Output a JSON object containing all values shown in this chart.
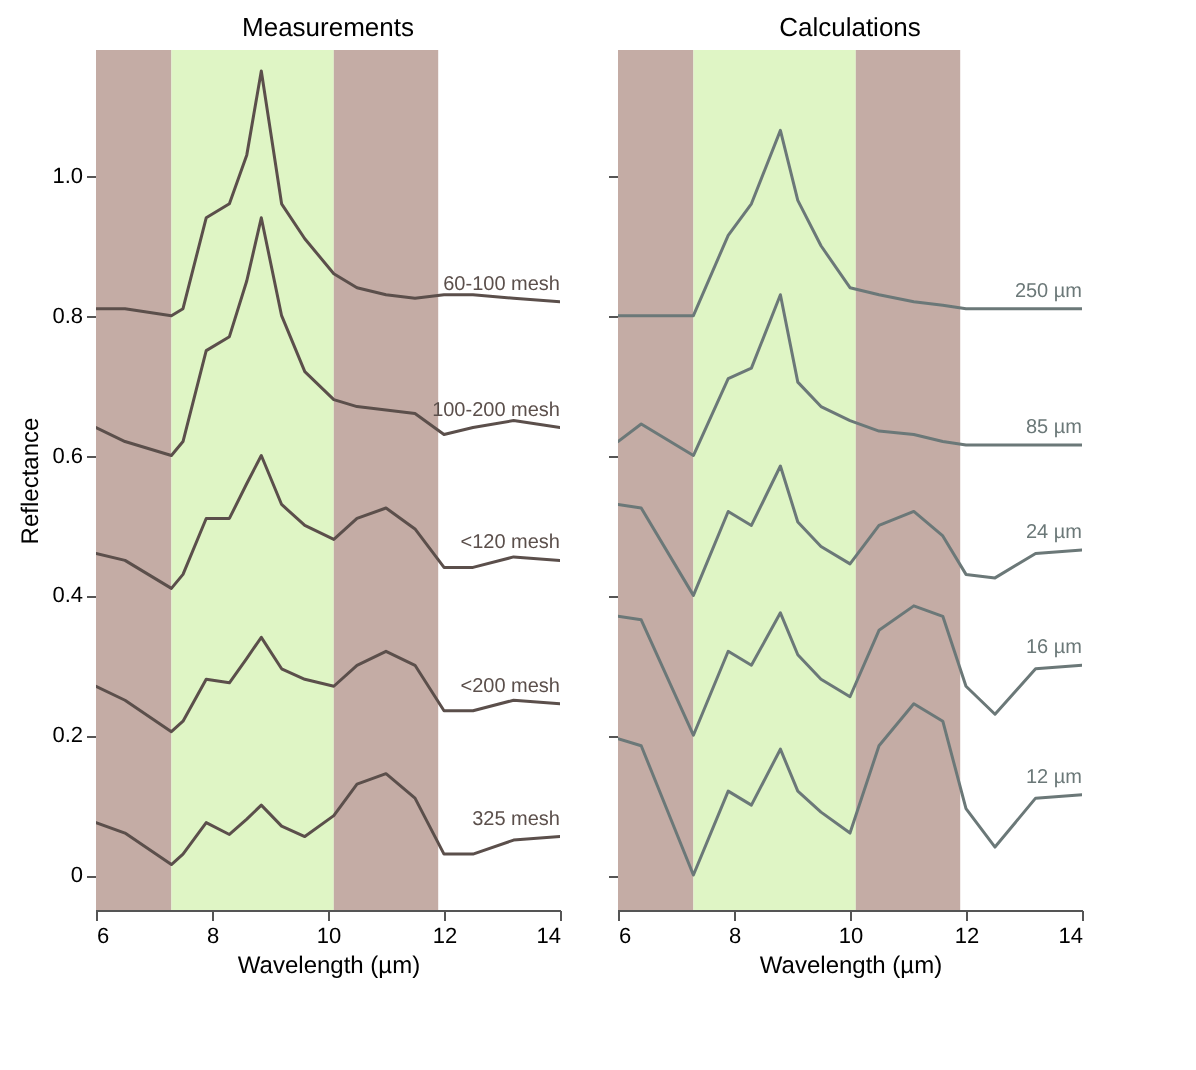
{
  "chart_data": [
    {
      "type": "line",
      "title": "Measurements",
      "xlabel": "Wavelength (µm)",
      "ylabel": "Reflectance",
      "xlim": [
        6,
        14
      ],
      "xticks": [
        6,
        8,
        10,
        12,
        14
      ],
      "ylim": [
        -0.05,
        1.18
      ],
      "yticks": [
        0,
        0.2,
        0.4,
        0.6,
        0.8,
        {
          "value": 1,
          "label": "1.0"
        }
      ],
      "grid": false,
      "line_style": "solid",
      "bands": [
        {
          "axis": "x",
          "from": 6,
          "to": 7.3,
          "color": "#c4aca5"
        },
        {
          "axis": "x",
          "from": 7.3,
          "to": 10.1,
          "color": "#dff5c5"
        },
        {
          "axis": "x",
          "from": 10.1,
          "to": 11.9,
          "color": "#c4aca5"
        }
      ],
      "x": [
        6,
        6.5,
        7.3,
        7.5,
        7.9,
        8.3,
        8.6,
        8.85,
        9.2,
        9.6,
        10.1,
        10.5,
        11,
        11.5,
        12,
        12.5,
        13.2,
        14
      ],
      "series": [
        {
          "name": "60-100 mesh",
          "color": "#5b4f4b",
          "values": [
            0.81,
            0.81,
            0.8,
            0.81,
            0.94,
            0.96,
            1.03,
            1.15,
            0.96,
            0.91,
            0.86,
            0.84,
            0.83,
            0.825,
            0.83,
            0.83,
            0.825,
            0.82
          ]
        },
        {
          "name": "100-200 mesh",
          "color": "#5b4f4b",
          "values": [
            0.64,
            0.62,
            0.6,
            0.62,
            0.75,
            0.77,
            0.85,
            0.94,
            0.8,
            0.72,
            0.68,
            0.67,
            0.665,
            0.66,
            0.63,
            0.64,
            0.65,
            0.64
          ]
        },
        {
          "name": "<120 mesh",
          "color": "#5b4f4b",
          "values": [
            0.46,
            0.45,
            0.41,
            0.43,
            0.51,
            0.51,
            0.56,
            0.6,
            0.53,
            0.5,
            0.48,
            0.51,
            0.525,
            0.495,
            0.44,
            0.44,
            0.455,
            0.45
          ]
        },
        {
          "name": "<200 mesh",
          "color": "#5b4f4b",
          "values": [
            0.27,
            0.25,
            0.205,
            0.22,
            0.28,
            0.275,
            0.31,
            0.34,
            0.295,
            0.28,
            0.27,
            0.3,
            0.32,
            0.3,
            0.235,
            0.235,
            0.25,
            0.245
          ]
        },
        {
          "name": "325 mesh",
          "color": "#5b4f4b",
          "values": [
            0.075,
            0.06,
            0.015,
            0.03,
            0.075,
            0.058,
            0.08,
            0.1,
            0.07,
            0.055,
            0.085,
            0.13,
            0.145,
            0.11,
            0.03,
            0.03,
            0.05,
            0.055
          ]
        }
      ]
    },
    {
      "type": "line",
      "title": "Calculations",
      "xlabel": "Wavelength (µm)",
      "xlim": [
        6,
        14
      ],
      "xticks": [
        6,
        8,
        10,
        12,
        14
      ],
      "ylim": [
        -0.05,
        1.18
      ],
      "yticks": [
        0,
        0.2,
        0.4,
        0.6,
        0.8,
        1
      ],
      "tick_labels": "x",
      "grid": false,
      "line_style": "solid",
      "bands": [
        {
          "axis": "x",
          "from": 6,
          "to": 7.3,
          "color": "#c4aca5"
        },
        {
          "axis": "x",
          "from": 7.3,
          "to": 10.1,
          "color": "#dff5c5"
        },
        {
          "axis": "x",
          "from": 10.1,
          "to": 11.9,
          "color": "#c4aca5"
        }
      ],
      "x": [
        6,
        6.4,
        7.3,
        7.9,
        8.3,
        8.8,
        9.1,
        9.5,
        10,
        10.5,
        11.1,
        11.6,
        12,
        12.5,
        13.2,
        14
      ],
      "series": [
        {
          "name": "250 µm",
          "color": "#6b7878",
          "values": [
            0.8,
            0.8,
            0.8,
            0.915,
            0.96,
            1.065,
            0.965,
            0.9,
            0.84,
            0.83,
            0.82,
            0.815,
            0.81,
            0.81,
            0.81,
            0.81
          ]
        },
        {
          "name": "85 µm",
          "color": "#6b7878",
          "values": [
            0.62,
            0.645,
            0.6,
            0.71,
            0.725,
            0.83,
            0.705,
            0.67,
            0.65,
            0.635,
            0.63,
            0.62,
            0.615,
            0.615,
            0.615,
            0.615
          ]
        },
        {
          "name": "24 µm",
          "color": "#6b7878",
          "values": [
            0.53,
            0.525,
            0.4,
            0.52,
            0.5,
            0.585,
            0.505,
            0.47,
            0.445,
            0.5,
            0.52,
            0.485,
            0.43,
            0.425,
            0.46,
            0.465
          ]
        },
        {
          "name": "16 µm",
          "color": "#6b7878",
          "values": [
            0.37,
            0.365,
            0.2,
            0.32,
            0.3,
            0.375,
            0.315,
            0.28,
            0.255,
            0.35,
            0.385,
            0.37,
            0.27,
            0.23,
            0.295,
            0.3
          ]
        },
        {
          "name": "12 µm",
          "color": "#6b7878",
          "values": [
            0.195,
            0.185,
            0,
            0.12,
            0.1,
            0.18,
            0.12,
            0.09,
            0.06,
            0.185,
            0.245,
            0.22,
            0.095,
            0.04,
            0.11,
            0.115
          ]
        }
      ]
    }
  ]
}
